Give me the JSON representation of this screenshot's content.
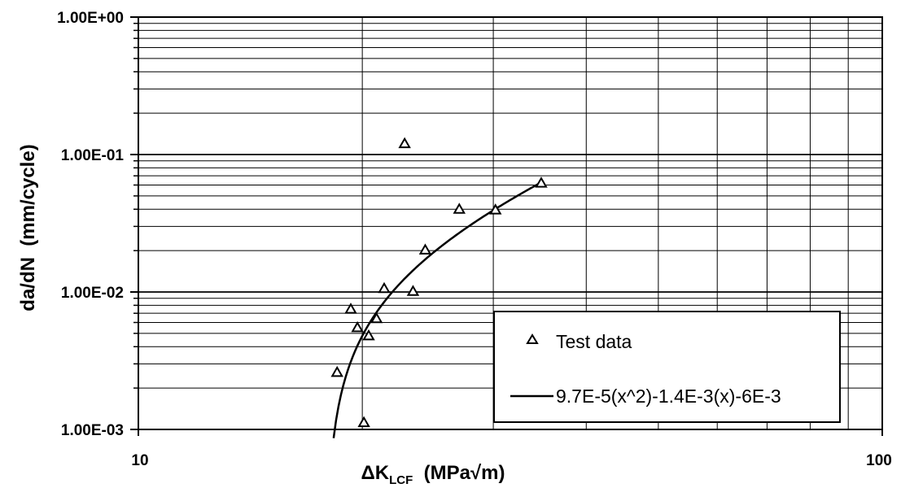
{
  "chart_data": {
    "type": "scatter",
    "xscale": "log",
    "yscale": "log",
    "xlim": [
      10,
      100
    ],
    "ylim": [
      0.001,
      1
    ],
    "grid": true,
    "legend_position": "bottom-right",
    "xlabel": "ΔK",
    "xlabel_subscript": "LCF",
    "xlabel_units": "(MPa√m)",
    "ylabel": "da/dN  (mm/cycle)",
    "x_tick_labels": [
      "10",
      "100"
    ],
    "y_tick_labels": [
      "1.00E-03",
      "1.00E-02",
      "1.00E-01",
      "1.00E+00"
    ],
    "series": [
      {
        "name": "Test data",
        "marker": "triangle",
        "points": [
          {
            "x": 18.5,
            "y": 0.0026
          },
          {
            "x": 19.3,
            "y": 0.0075
          },
          {
            "x": 19.7,
            "y": 0.0055
          },
          {
            "x": 20.1,
            "y": 0.00112
          },
          {
            "x": 20.4,
            "y": 0.0048
          },
          {
            "x": 20.9,
            "y": 0.0064
          },
          {
            "x": 21.4,
            "y": 0.0106
          },
          {
            "x": 22.8,
            "y": 0.12
          },
          {
            "x": 23.4,
            "y": 0.0101
          },
          {
            "x": 24.3,
            "y": 0.0202
          },
          {
            "x": 27.0,
            "y": 0.04
          },
          {
            "x": 30.2,
            "y": 0.0395
          },
          {
            "x": 34.8,
            "y": 0.062
          }
        ]
      },
      {
        "name": "9.7E-5(x^2)-1.4E-3(x)-6E-3",
        "type": "line",
        "coefficients": {
          "a": 9.7e-05,
          "b": -0.0014,
          "c": -0.006
        },
        "x_range": [
          18.3,
          35.0
        ]
      }
    ]
  }
}
